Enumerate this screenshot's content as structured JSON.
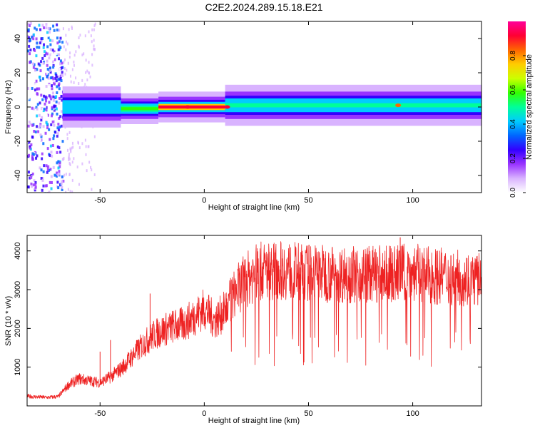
{
  "figure": {
    "title": "C2E2.2024.289.15.18.E21"
  },
  "chart_data": [
    {
      "type": "heatmap",
      "xlabel": "Height of straight line (km)",
      "ylabel": "Frequency (Hz)",
      "xlim": [
        -85,
        133
      ],
      "ylim": [
        -50,
        50
      ],
      "xticks": [
        -50,
        0,
        50,
        100
      ],
      "yticks": [
        -40,
        -20,
        0,
        20,
        40
      ],
      "colorbar": {
        "label": "Normalized spectral amplitude",
        "ticks": [
          0.0,
          0.2,
          0.4,
          0.6,
          0.8
        ],
        "range": [
          0.0,
          1.0
        ],
        "colormap": [
          "#ffffff",
          "#d9b3ff",
          "#9933ff",
          "#3300ff",
          "#0066ff",
          "#00ccff",
          "#00ff99",
          "#33ff00",
          "#ccff00",
          "#ffcc00",
          "#ff6600",
          "#ff0033",
          "#ff0099"
        ]
      },
      "bands": [
        {
          "x": [
            -85,
            -68
          ],
          "f_center": 0,
          "f_halfwidth": 50,
          "amplitude": 0.1,
          "character": "scattered"
        },
        {
          "x": [
            -68,
            -40
          ],
          "f_center": 0,
          "f_halfwidth": 4,
          "amplitude": 0.45
        },
        {
          "x": [
            -40,
            -22
          ],
          "f_center": -1,
          "f_halfwidth": 3,
          "amplitude": 0.55
        },
        {
          "x": [
            -22,
            10
          ],
          "f_center": 0,
          "f_halfwidth": 3,
          "amplitude": 0.9
        },
        {
          "x": [
            10,
            133
          ],
          "f_center": 1,
          "f_halfwidth": 4,
          "amplitude": 0.5
        }
      ],
      "peaks": [
        {
          "x": -8,
          "f": 0,
          "amplitude": 0.95
        },
        {
          "x": 11,
          "f": 0,
          "amplitude": 0.92
        },
        {
          "x": 93,
          "f": 1,
          "amplitude": 0.85
        }
      ]
    },
    {
      "type": "line",
      "xlabel": "Height of straight line (km)",
      "ylabel": "SNR (10 * v/v)",
      "xlim": [
        -85,
        133
      ],
      "ylim": [
        0,
        4400
      ],
      "xticks": [
        -50,
        0,
        50,
        100
      ],
      "yticks": [
        1000,
        2000,
        3000,
        4000
      ],
      "color": "#ee2222",
      "series": [
        {
          "x": [
            -85,
            -80,
            -75,
            -70,
            -65,
            -60,
            -55,
            -50,
            -45,
            -40,
            -35,
            -30,
            -25,
            -20,
            -15,
            -10,
            -5,
            0,
            5,
            10,
            15,
            20,
            25,
            30,
            35,
            40,
            45,
            50,
            55,
            60,
            65,
            70,
            75,
            80,
            85,
            90,
            95,
            100,
            105,
            110,
            115,
            120,
            125,
            130,
            133
          ],
          "values": [
            250,
            230,
            220,
            240,
            550,
            700,
            650,
            600,
            750,
            950,
            1250,
            1550,
            1800,
            1950,
            2050,
            2100,
            2300,
            2500,
            2200,
            2450,
            2950,
            3250,
            3450,
            3500,
            3500,
            3500,
            3450,
            3450,
            3450,
            3400,
            3400,
            3400,
            3400,
            3400,
            3400,
            3400,
            3450,
            3450,
            3400,
            3350,
            3350,
            3300,
            3300,
            3250,
            3250
          ]
        }
      ],
      "spikes": [
        {
          "x": -50,
          "value": 1400
        },
        {
          "x": -45,
          "value": 1700
        },
        {
          "x": -26,
          "value": 2900
        },
        {
          "x": 47,
          "value": 4000
        },
        {
          "x": 94,
          "value": 4350
        }
      ],
      "dip_floor": 1000
    }
  ]
}
